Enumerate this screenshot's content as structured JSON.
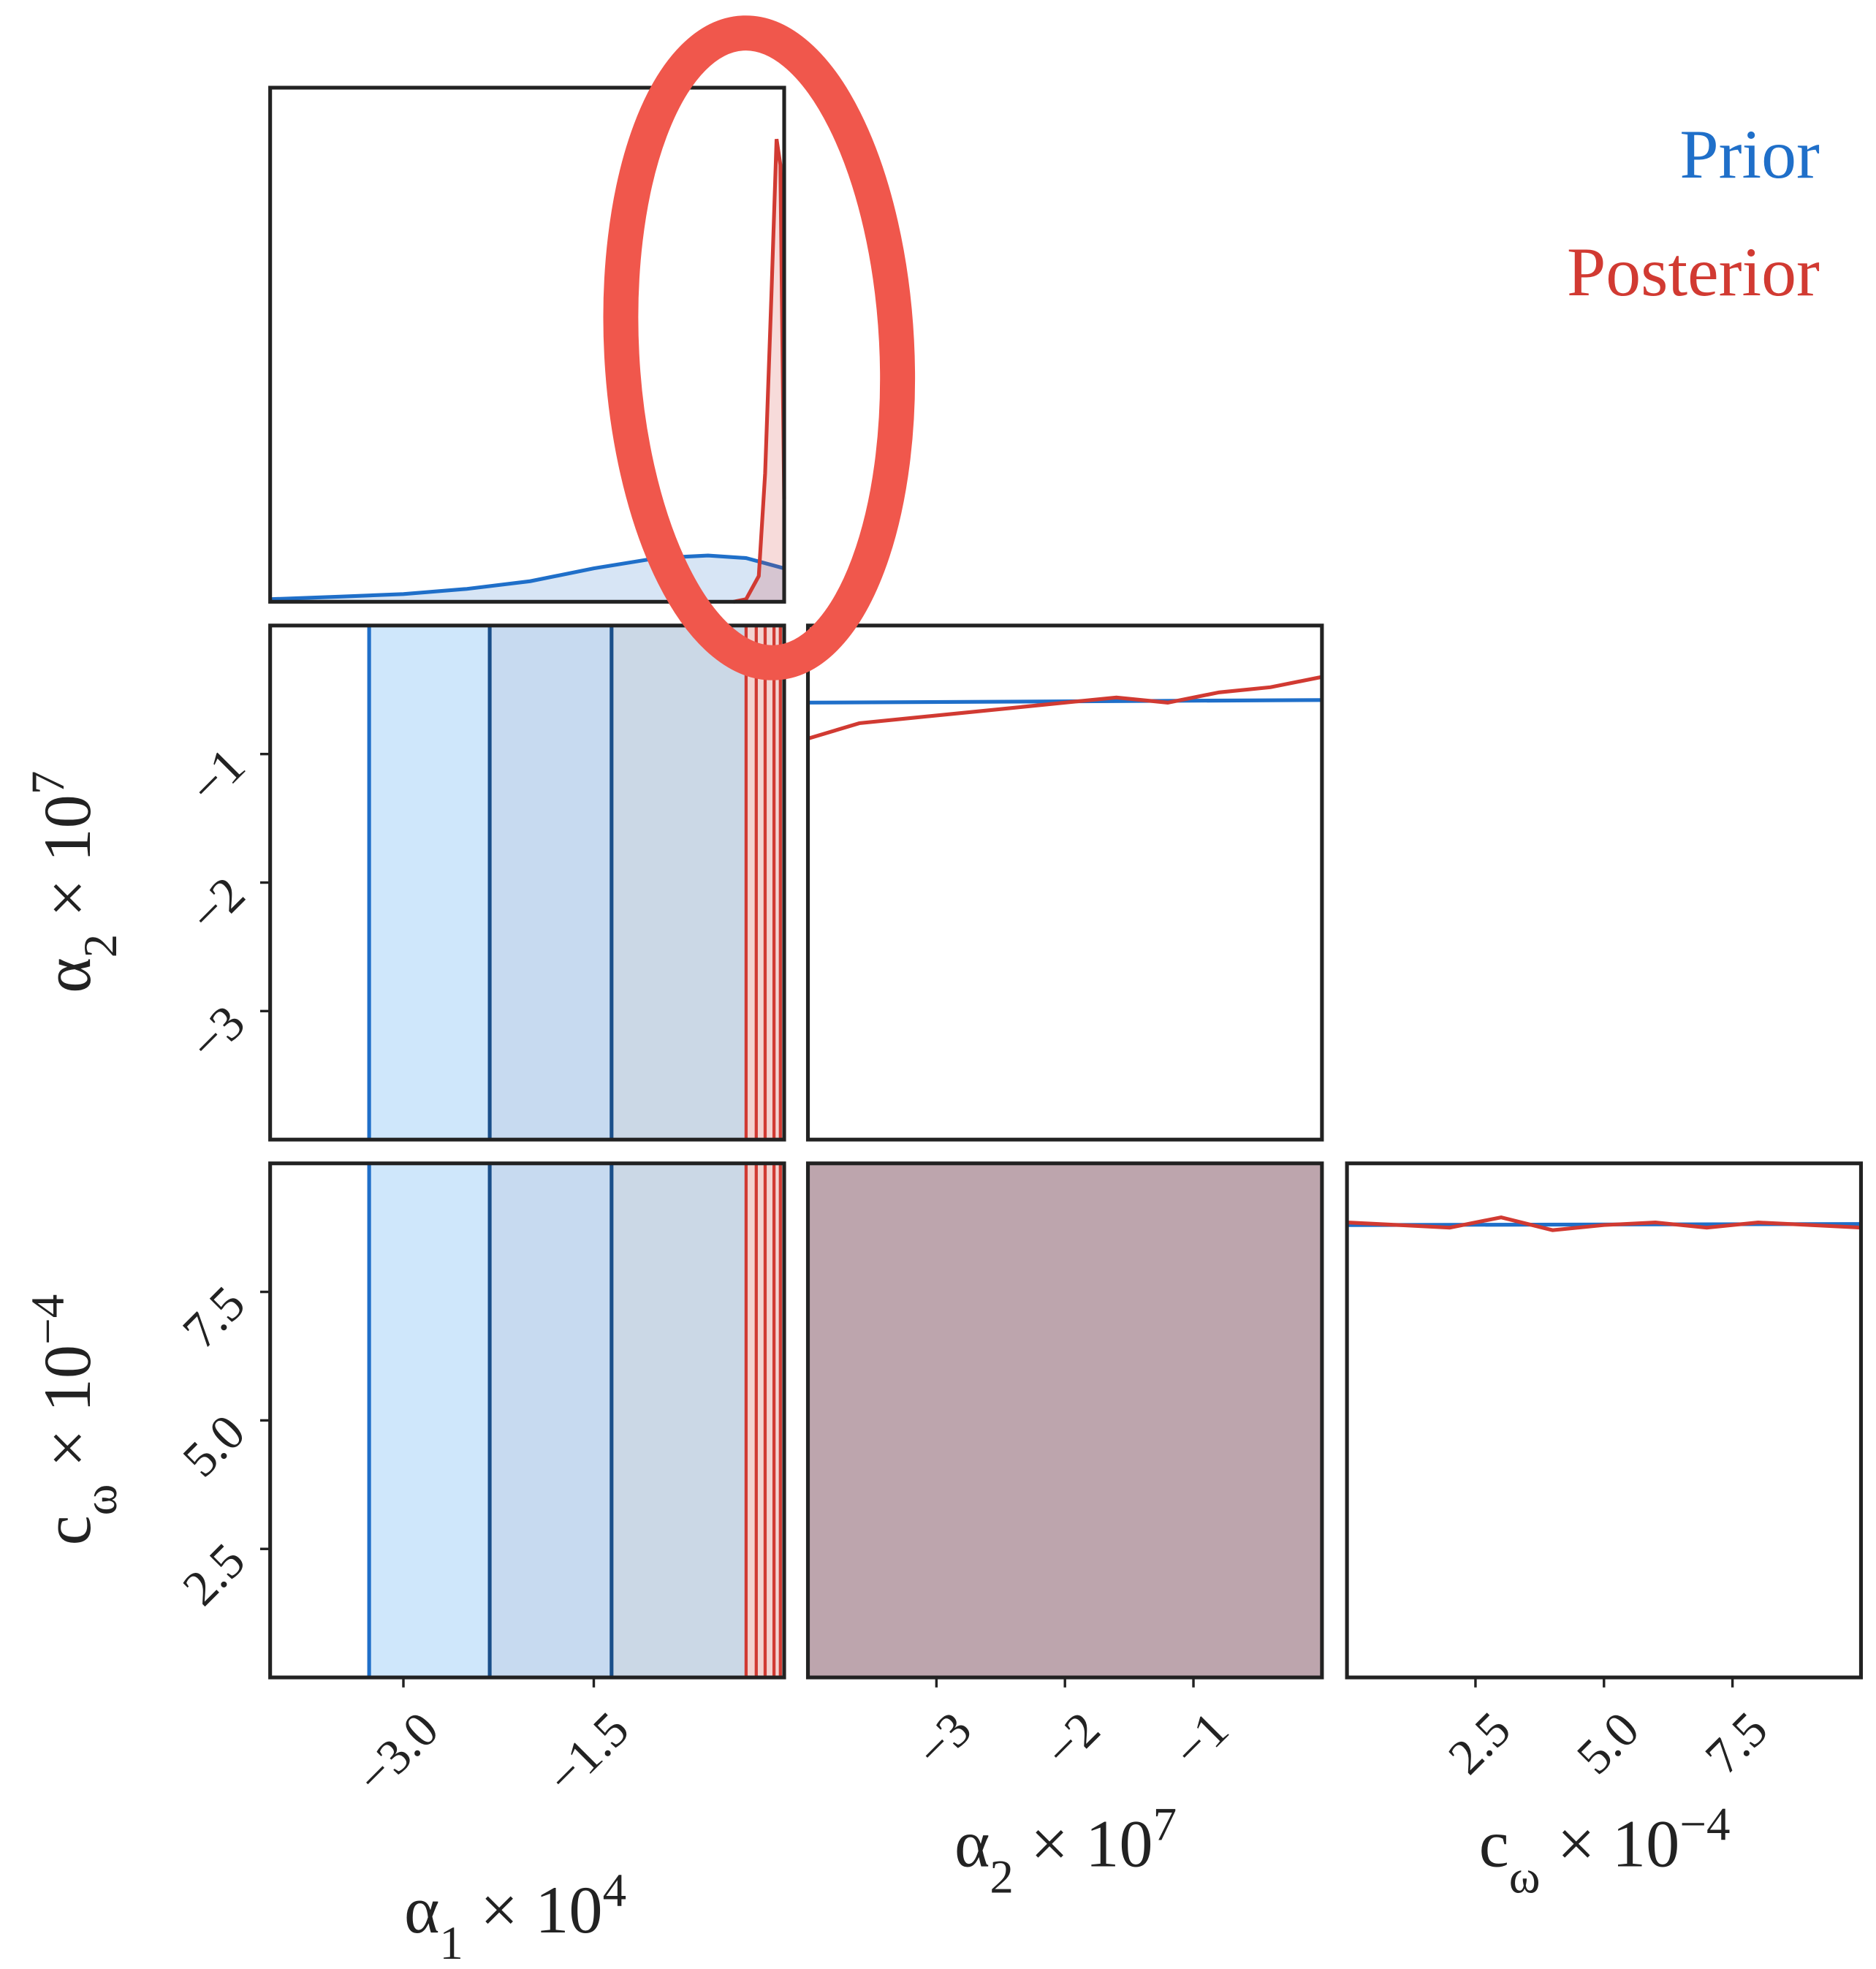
{
  "chart_data": {
    "type": "corner",
    "series": [
      {
        "name": "Prior",
        "color": "#1f6fc9"
      },
      {
        "name": "Posterior",
        "color": "#d13a32"
      }
    ],
    "parameters": [
      {
        "label": {
          "base": "α",
          "sub": "1",
          "mid": " × 10",
          "sup": "4"
        },
        "lim": [
          -4.05,
          0
        ],
        "ticks": [
          {
            "value": -3,
            "label": "−3.0"
          },
          {
            "value": -1.5,
            "label": "−1.5"
          }
        ]
      },
      {
        "label": {
          "base": "α",
          "sub": "2",
          "mid": " × 10",
          "sup": "7"
        },
        "lim": [
          -4,
          0
        ],
        "ticks": [
          {
            "value": -3,
            "label": "−3"
          },
          {
            "value": -2,
            "label": "−2"
          },
          {
            "value": -1,
            "label": "−1"
          }
        ]
      },
      {
        "label": {
          "base": "c",
          "sub": "ω",
          "mid": " × 10",
          "sup": "−4"
        },
        "lim": [
          0,
          10
        ],
        "ticks": [
          2.5,
          {
            "value": 5,
            "label": "5.0"
          },
          7.5
        ]
      }
    ],
    "density_ylim": [
      0,
      1
    ],
    "diagonal": [
      {
        "prior": {
          "x": [
            -4.05,
            -3.5,
            -3.0,
            -2.5,
            -2.0,
            -1.5,
            -1.0,
            -0.6,
            -0.3,
            0
          ],
          "values": [
            0.005,
            0.01,
            0.015,
            0.025,
            0.04,
            0.065,
            0.085,
            0.09,
            0.085,
            0.065
          ]
        },
        "posterior": {
          "x": [
            -0.4,
            -0.3,
            -0.2,
            -0.15,
            -0.1,
            -0.06,
            -0.03,
            0
          ],
          "values": [
            0,
            0.005,
            0.05,
            0.25,
            0.6,
            0.9,
            0.85,
            0.2
          ]
        }
      },
      {
        "prior": {
          "x": [
            -4,
            0
          ],
          "values": [
            0.85,
            0.855
          ]
        },
        "posterior": {
          "x": [
            -4,
            -3.6,
            -3.2,
            -2.8,
            -2.4,
            -2.0,
            -1.6,
            -1.2,
            -0.8,
            -0.4,
            0
          ],
          "values": [
            0.78,
            0.81,
            0.82,
            0.83,
            0.84,
            0.85,
            0.86,
            0.85,
            0.87,
            0.88,
            0.9
          ]
        }
      },
      {
        "prior": {
          "x": [
            0,
            10
          ],
          "values": [
            0.88,
            0.882
          ]
        },
        "posterior": {
          "x": [
            0,
            1,
            2,
            3,
            4,
            5,
            6,
            7,
            8,
            9,
            10
          ],
          "values": [
            0.885,
            0.88,
            0.875,
            0.895,
            0.87,
            0.88,
            0.885,
            0.875,
            0.885,
            0.88,
            0.875
          ]
        }
      }
    ],
    "contours": [
      {
        "x_param": 0,
        "y_param": 1,
        "prior_levels": [
          -3.27,
          -2.32,
          -1.36
        ],
        "prior_fills": [
          "#cfe7fb",
          "#c7daf0",
          "#cbd8e6"
        ],
        "posterior_levels": [
          -0.3,
          -0.22,
          -0.15,
          -0.08,
          -0.03
        ],
        "posterior_fill": "#f3d3d0"
      },
      {
        "x_param": 0,
        "y_param": 2,
        "prior_levels": [
          -3.27,
          -2.32,
          -1.36
        ],
        "prior_fills": [
          "#cfe7fb",
          "#c7daf0",
          "#cbd8e6"
        ],
        "posterior_levels": [
          -0.3,
          -0.22,
          -0.15,
          -0.08,
          -0.03
        ],
        "posterior_fill": "#f3d3d0"
      },
      {
        "x_param": 1,
        "y_param": 2,
        "fill": "#bda5ad"
      }
    ]
  }
}
